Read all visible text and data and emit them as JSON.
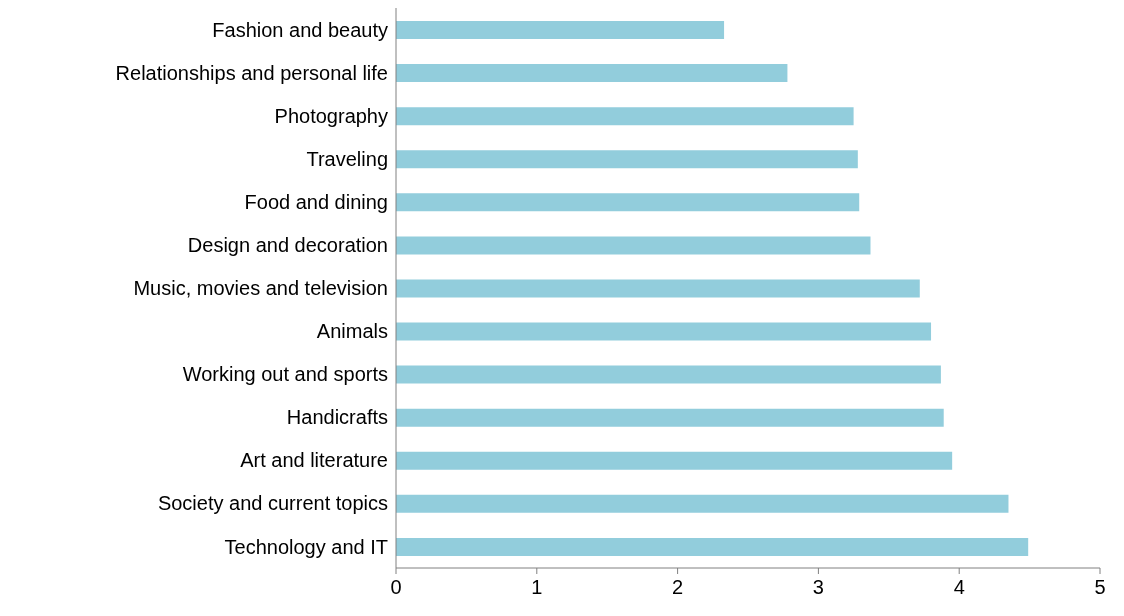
{
  "chart_data": {
    "type": "bar",
    "orientation": "horizontal",
    "categories": [
      "Fashion and beauty",
      "Relationships and personal life",
      "Photography",
      "Traveling",
      "Food and dining",
      "Design and decoration",
      "Music, movies and television",
      "Animals",
      "Working out and sports",
      "Handicrafts",
      "Art and literature",
      "Society and current topics",
      "Technology and IT"
    ],
    "values": [
      2.33,
      2.78,
      3.25,
      3.28,
      3.29,
      3.37,
      3.72,
      3.8,
      3.87,
      3.89,
      3.95,
      4.35,
      4.49
    ],
    "color": "#92cddc",
    "xlim": [
      0,
      5
    ],
    "xticks": [
      0,
      1,
      2,
      3,
      4,
      5
    ],
    "grid": false,
    "legend": false
  }
}
